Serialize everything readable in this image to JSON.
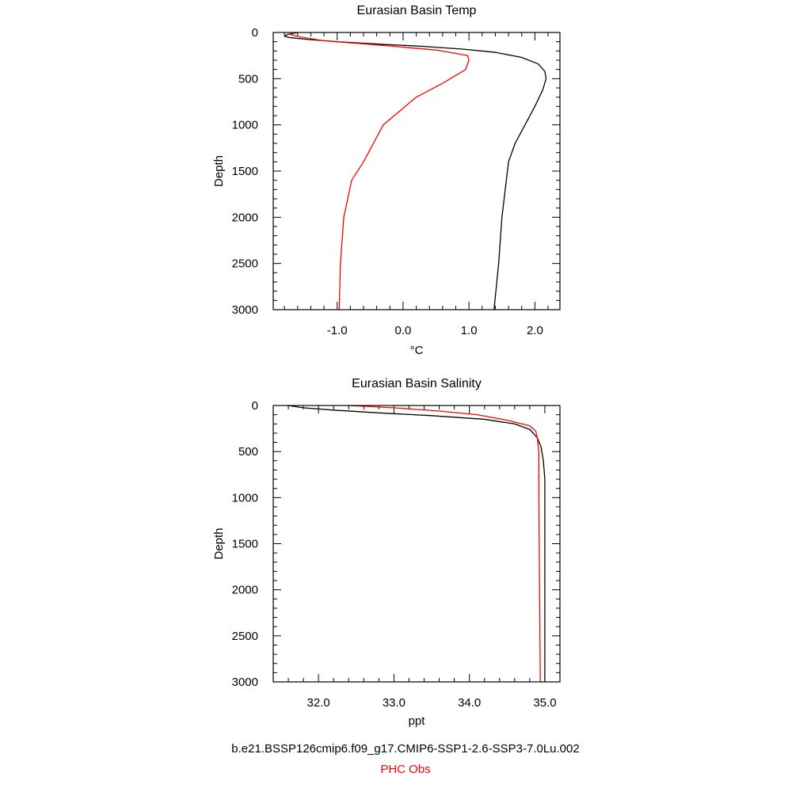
{
  "captions": {
    "model": "b.e21.BSSP126cmip6.f09_g17.CMIP6-SSP1-2.6-SSP3-7.0Lu.002",
    "obs": "PHC Obs"
  },
  "colors": {
    "model": "#000000",
    "obs": "#ff0000"
  },
  "chart_data": [
    {
      "type": "line",
      "title": "Eurasian Basin Temp",
      "xlabel": "°C",
      "ylabel": "Depth",
      "xlim": [
        -1.97,
        2.38
      ],
      "ylim": [
        3000,
        0
      ],
      "y_inverted": true,
      "grid": false,
      "x_ticks": [
        -1.0,
        0.0,
        1.0,
        2.0
      ],
      "x_tick_labels": [
        "-1.0",
        "0.0",
        "1.0",
        "2.0"
      ],
      "x_minor_step": 0.2,
      "y_ticks": [
        0,
        500,
        1000,
        1500,
        2000,
        2500,
        3000
      ],
      "y_tick_labels": [
        "0",
        "500",
        "1000",
        "1500",
        "2000",
        "2500",
        "3000"
      ],
      "y_minor_step": 100,
      "series": [
        {
          "color": "model",
          "points": [
            [
              -1.6,
              0
            ],
            [
              -1.75,
              20
            ],
            [
              -1.8,
              40
            ],
            [
              -1.72,
              55
            ],
            [
              -1.45,
              75
            ],
            [
              -1.0,
              100
            ],
            [
              -0.4,
              125
            ],
            [
              0.3,
              150
            ],
            [
              0.9,
              180
            ],
            [
              1.4,
              215
            ],
            [
              1.8,
              270
            ],
            [
              2.05,
              340
            ],
            [
              2.15,
              420
            ],
            [
              2.17,
              500
            ],
            [
              2.12,
              620
            ],
            [
              2.0,
              800
            ],
            [
              1.85,
              1000
            ],
            [
              1.7,
              1200
            ],
            [
              1.6,
              1400
            ],
            [
              1.55,
              1700
            ],
            [
              1.5,
              2000
            ],
            [
              1.45,
              2500
            ],
            [
              1.38,
              3000
            ]
          ]
        },
        {
          "color": "obs",
          "points": [
            [
              -1.65,
              0
            ],
            [
              -1.7,
              25
            ],
            [
              -1.55,
              50
            ],
            [
              -1.2,
              90
            ],
            [
              -0.3,
              140
            ],
            [
              0.5,
              190
            ],
            [
              0.98,
              250
            ],
            [
              1.0,
              300
            ],
            [
              0.95,
              400
            ],
            [
              0.6,
              550
            ],
            [
              0.2,
              700
            ],
            [
              -0.3,
              1000
            ],
            [
              -0.6,
              1400
            ],
            [
              -0.78,
              1600
            ],
            [
              -0.9,
              2000
            ],
            [
              -0.95,
              2500
            ],
            [
              -0.97,
              3000
            ]
          ]
        }
      ]
    },
    {
      "type": "line",
      "title": "Eurasian Basin Salinity",
      "xlabel": "ppt",
      "ylabel": "Depth",
      "xlim": [
        31.4,
        35.2
      ],
      "ylim": [
        3000,
        0
      ],
      "y_inverted": true,
      "grid": false,
      "x_ticks": [
        32.0,
        33.0,
        34.0,
        35.0
      ],
      "x_tick_labels": [
        "32.0",
        "33.0",
        "34.0",
        "35.0"
      ],
      "x_minor_step": 0.2,
      "y_ticks": [
        0,
        500,
        1000,
        1500,
        2000,
        2500,
        3000
      ],
      "y_tick_labels": [
        "0",
        "500",
        "1000",
        "1500",
        "2000",
        "2500",
        "3000"
      ],
      "y_minor_step": 100,
      "series": [
        {
          "color": "model",
          "points": [
            [
              31.6,
              0
            ],
            [
              31.8,
              25
            ],
            [
              32.2,
              50
            ],
            [
              32.8,
              80
            ],
            [
              33.5,
              110
            ],
            [
              34.2,
              150
            ],
            [
              34.6,
              200
            ],
            [
              34.8,
              260
            ],
            [
              34.9,
              350
            ],
            [
              34.95,
              450
            ],
            [
              34.98,
              600
            ],
            [
              35.0,
              800
            ],
            [
              35.0,
              1500
            ],
            [
              35.0,
              3000
            ]
          ]
        },
        {
          "color": "obs",
          "points": [
            [
              32.4,
              0
            ],
            [
              33.0,
              25
            ],
            [
              33.6,
              60
            ],
            [
              34.1,
              100
            ],
            [
              34.5,
              160
            ],
            [
              34.8,
              220
            ],
            [
              34.88,
              280
            ],
            [
              34.9,
              350
            ],
            [
              34.92,
              500
            ],
            [
              34.92,
              1000
            ],
            [
              34.93,
              2000
            ],
            [
              34.94,
              3000
            ]
          ]
        }
      ]
    }
  ]
}
